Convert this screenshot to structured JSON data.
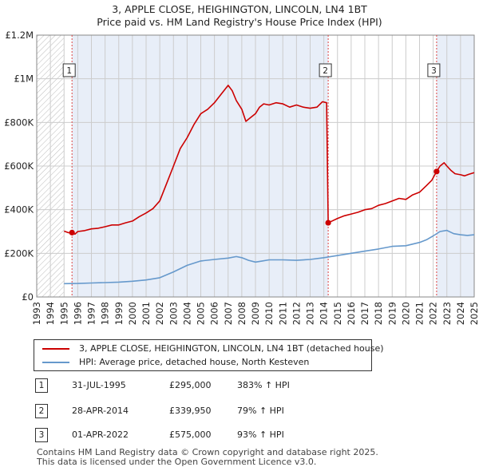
{
  "title_line1": "3, APPLE CLOSE, HEIGHINGTON, LINCOLN, LN4 1BT",
  "title_line2": "Price paid vs. HM Land Registry's House Price Index (HPI)",
  "colors": {
    "price": "#cc0000",
    "hpi": "#6699cc",
    "shade": "#e8eef8",
    "grid": "#cccccc",
    "vline": "#dd4444",
    "marker": "#cc0000"
  },
  "chart_data": {
    "type": "line",
    "title": "Price paid vs. HM Land Registry's House Price Index (HPI)",
    "xlabel": "",
    "ylabel": "",
    "xlim": [
      1993,
      2025
    ],
    "ylim": [
      0,
      1200000
    ],
    "grid": true,
    "y_ticks": [
      {
        "value": 0,
        "label": "£0"
      },
      {
        "value": 200000,
        "label": "£200K"
      },
      {
        "value": 400000,
        "label": "£400K"
      },
      {
        "value": 600000,
        "label": "£600K"
      },
      {
        "value": 800000,
        "label": "£800K"
      },
      {
        "value": 1000000,
        "label": "£1M"
      },
      {
        "value": 1200000,
        "label": "£1.2M"
      }
    ],
    "x_ticks": [
      "1993",
      "1994",
      "1995",
      "1996",
      "1997",
      "1998",
      "1999",
      "2000",
      "2001",
      "2002",
      "2003",
      "2004",
      "2005",
      "2006",
      "2007",
      "2008",
      "2009",
      "2010",
      "2011",
      "2012",
      "2013",
      "2014",
      "2015",
      "2016",
      "2017",
      "2018",
      "2019",
      "2020",
      "2021",
      "2022",
      "2023",
      "2024",
      "2025"
    ],
    "series": [
      {
        "name": "3, APPLE CLOSE, HEIGHINGTON, LINCOLN, LN4 1BT (detached house)",
        "color": "#cc0000",
        "x": [
          1995.0,
          1995.3,
          1995.58,
          1995.8,
          1996.0,
          1996.5,
          1997.0,
          1997.5,
          1998.0,
          1998.5,
          1999.0,
          1999.5,
          2000.0,
          2000.5,
          2001.0,
          2001.5,
          2002.0,
          2002.5,
          2003.0,
          2003.5,
          2004.0,
          2004.5,
          2005.0,
          2005.5,
          2006.0,
          2006.5,
          2007.0,
          2007.3,
          2007.6,
          2008.0,
          2008.3,
          2008.6,
          2009.0,
          2009.3,
          2009.6,
          2010.0,
          2010.5,
          2011.0,
          2011.5,
          2012.0,
          2012.5,
          2013.0,
          2013.5,
          2013.9,
          2014.2,
          2014.32,
          2014.5,
          2015.0,
          2015.5,
          2016.0,
          2016.5,
          2017.0,
          2017.5,
          2018.0,
          2018.5,
          2019.0,
          2019.5,
          2020.0,
          2020.5,
          2021.0,
          2021.5,
          2021.9,
          2022.25,
          2022.5,
          2022.8,
          2023.0,
          2023.3,
          2023.6,
          2024.0,
          2024.3,
          2024.6,
          2025.0
        ],
        "values": [
          302000,
          295000,
          295000,
          288000,
          300000,
          304000,
          312000,
          315000,
          322000,
          330000,
          330000,
          340000,
          348000,
          368000,
          385000,
          405000,
          440000,
          520000,
          600000,
          680000,
          730000,
          790000,
          840000,
          860000,
          890000,
          930000,
          970000,
          945000,
          900000,
          860000,
          805000,
          820000,
          840000,
          870000,
          885000,
          880000,
          890000,
          885000,
          870000,
          880000,
          870000,
          865000,
          870000,
          895000,
          890000,
          339950,
          345000,
          360000,
          372000,
          380000,
          388000,
          400000,
          405000,
          420000,
          428000,
          440000,
          452000,
          447000,
          468000,
          480000,
          510000,
          535000,
          575000,
          600000,
          615000,
          600000,
          580000,
          565000,
          560000,
          555000,
          562000,
          570000
        ]
      },
      {
        "name": "HPI: Average price, detached house, North Kesteven",
        "color": "#6699cc",
        "x": [
          1995.0,
          1996.0,
          1997.0,
          1998.0,
          1999.0,
          2000.0,
          2001.0,
          2002.0,
          2003.0,
          2004.0,
          2005.0,
          2006.0,
          2007.0,
          2007.6,
          2008.0,
          2008.5,
          2009.0,
          2009.5,
          2010.0,
          2011.0,
          2012.0,
          2013.0,
          2014.0,
          2015.0,
          2016.0,
          2017.0,
          2018.0,
          2019.0,
          2020.0,
          2021.0,
          2021.5,
          2022.0,
          2022.5,
          2023.0,
          2023.5,
          2024.0,
          2024.5,
          2025.0
        ],
        "values": [
          61000,
          62000,
          64000,
          66000,
          68000,
          72000,
          78000,
          88000,
          115000,
          145000,
          165000,
          172000,
          178000,
          185000,
          180000,
          168000,
          160000,
          165000,
          170000,
          170000,
          168000,
          172000,
          180000,
          190000,
          200000,
          210000,
          220000,
          232000,
          235000,
          250000,
          262000,
          280000,
          300000,
          305000,
          290000,
          285000,
          282000,
          285000
        ]
      }
    ],
    "sales": [
      {
        "num": "1",
        "x": 1995.58,
        "price": 295000
      },
      {
        "num": "2",
        "x": 2014.32,
        "price": 339950
      },
      {
        "num": "3",
        "x": 2022.25,
        "price": 575000
      }
    ],
    "shaded_before": 1995.0
  },
  "legend": {
    "items": [
      {
        "label": "3, APPLE CLOSE, HEIGHINGTON, LINCOLN, LN4 1BT (detached house)"
      },
      {
        "label": "HPI: Average price, detached house, North Kesteven"
      }
    ]
  },
  "table": {
    "rows": [
      {
        "num": "1",
        "date": "31-JUL-1995",
        "price": "£295,000",
        "hpi": "383% ↑ HPI"
      },
      {
        "num": "2",
        "date": "28-APR-2014",
        "price": "£339,950",
        "hpi": "79% ↑ HPI"
      },
      {
        "num": "3",
        "date": "01-APR-2022",
        "price": "£575,000",
        "hpi": "93% ↑ HPI"
      }
    ]
  },
  "footer": {
    "line1": "Contains HM Land Registry data © Crown copyright and database right 2025.",
    "line2": "This data is licensed under the Open Government Licence v3.0."
  }
}
